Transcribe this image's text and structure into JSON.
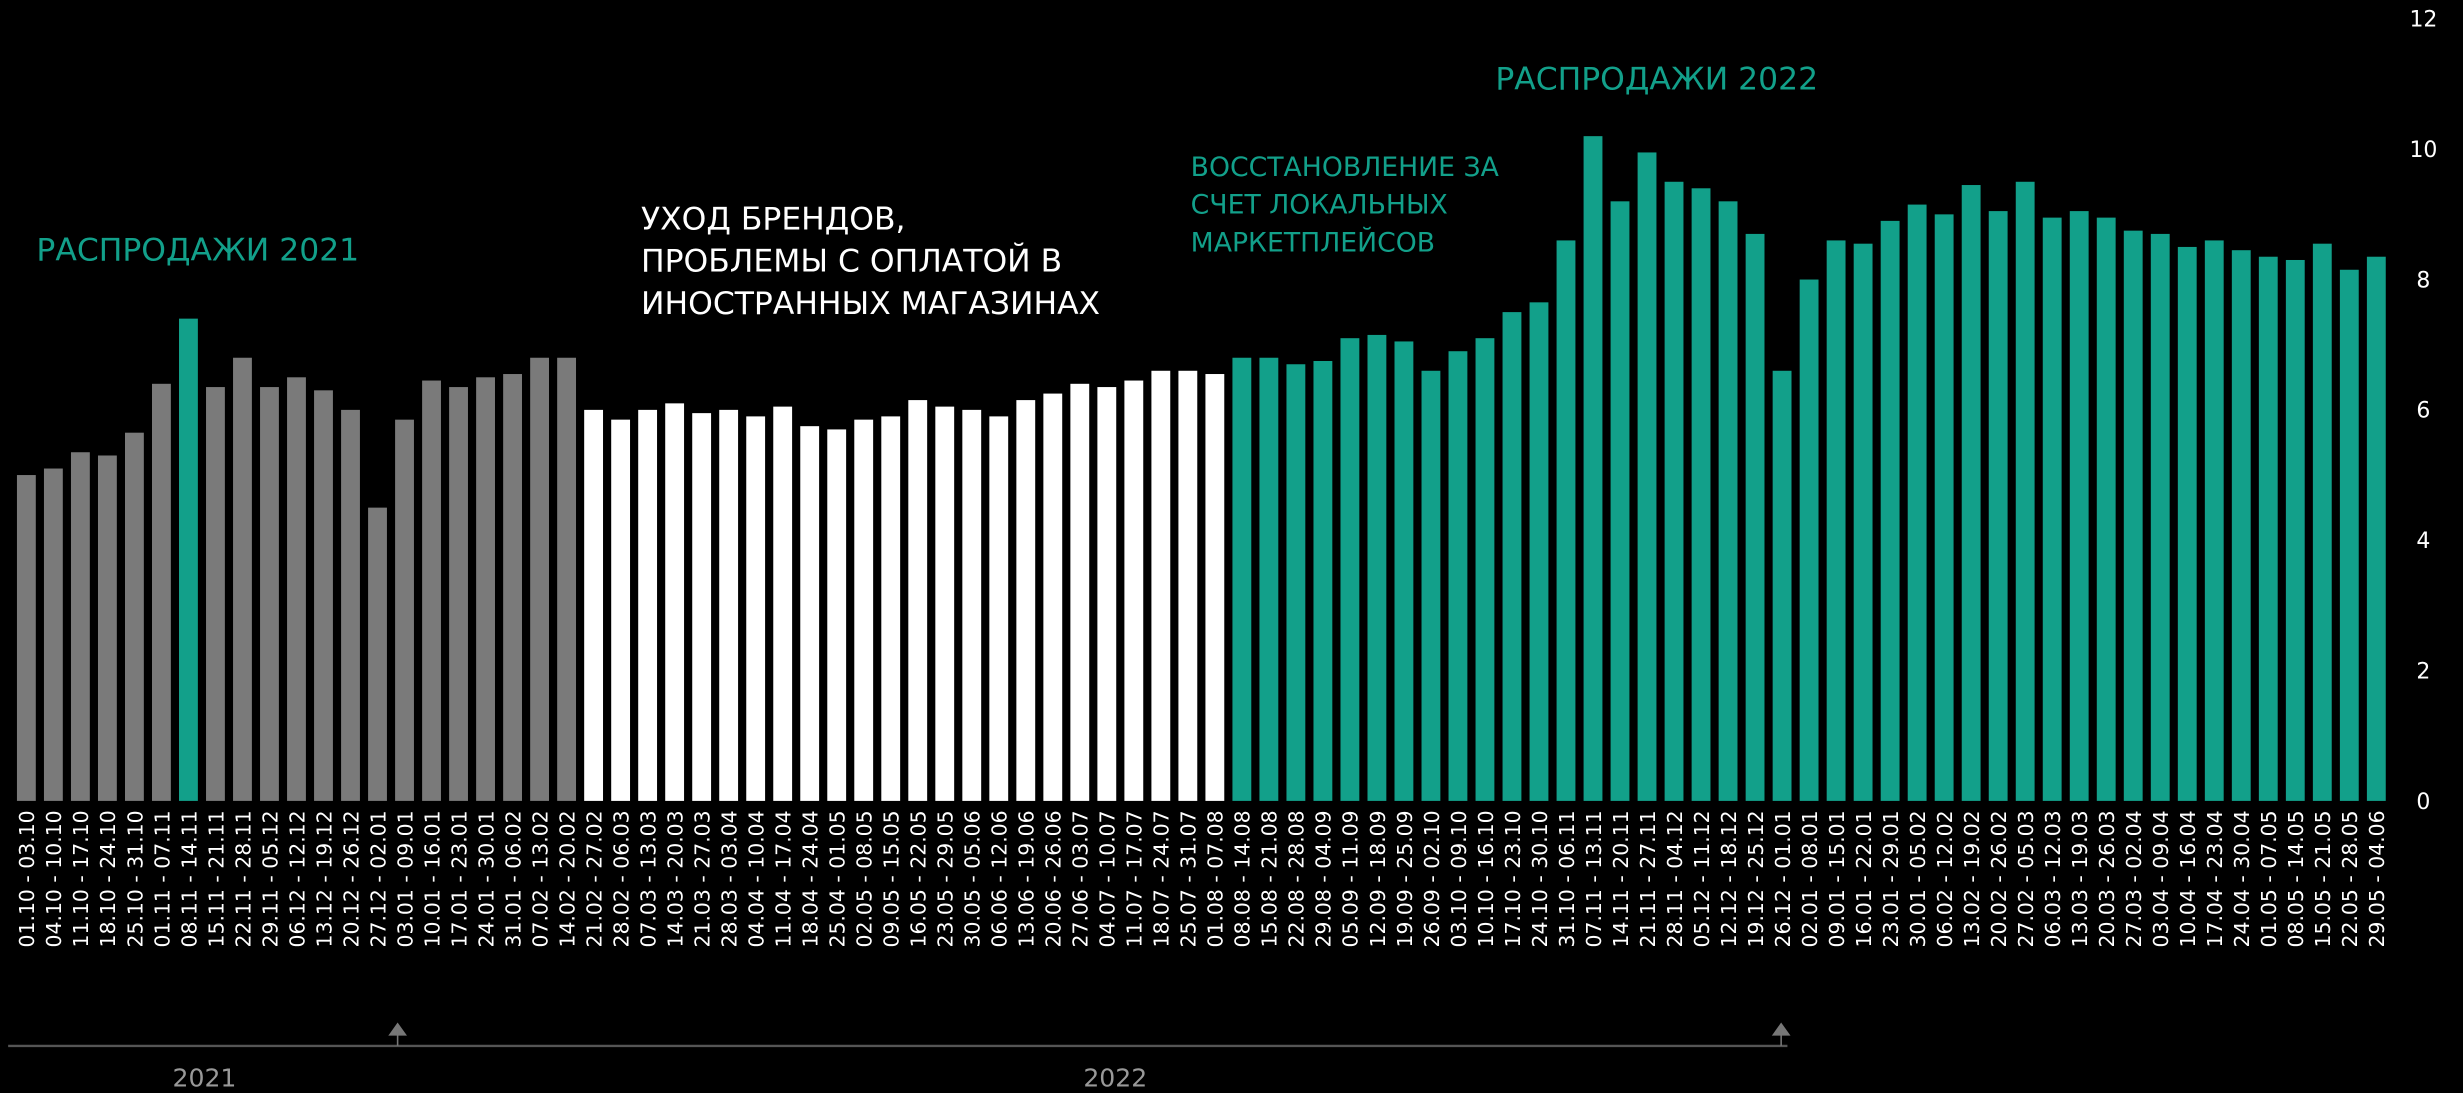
{
  "chart_data": {
    "type": "bar",
    "categories": [
      "01.10 - 03.10",
      "04.10 - 10.10",
      "11.10 - 17.10",
      "18.10 - 24.10",
      "25.10 - 31.10",
      "01.11 - 07.11",
      "08.11 - 14.11",
      "15.11 - 21.11",
      "22.11 - 28.11",
      "29.11 - 05.12",
      "06.12 - 12.12",
      "13.12 - 19.12",
      "20.12 - 26.12",
      "27.12 - 02.01",
      "03.01 - 09.01",
      "10.01 - 16.01",
      "17.01 - 23.01",
      "24.01 - 30.01",
      "31.01 - 06.02",
      "07.02 - 13.02",
      "14.02 - 20.02",
      "21.02 - 27.02",
      "28.02 - 06.03",
      "07.03 - 13.03",
      "14.03 - 20.03",
      "21.03 - 27.03",
      "28.03 - 03.04",
      "04.04 - 10.04",
      "11.04 - 17.04",
      "18.04 - 24.04",
      "25.04 - 01.05",
      "02.05 - 08.05",
      "09.05 - 15.05",
      "16.05 - 22.05",
      "23.05 - 29.05",
      "30.05 - 05.06",
      "06.06 - 12.06",
      "13.06 - 19.06",
      "20.06 - 26.06",
      "27.06 - 03.07",
      "04.07 - 10.07",
      "11.07 - 17.07",
      "18.07 - 24.07",
      "25.07 - 31.07",
      "01.08 - 07.08",
      "08.08 - 14.08",
      "15.08 - 21.08",
      "22.08 - 28.08",
      "29.08 - 04.09",
      "05.09 - 11.09",
      "12.09 - 18.09",
      "19.09 - 25.09",
      "26.09 - 02.10",
      "03.10 - 09.10",
      "10.10 - 16.10",
      "17.10 - 23.10",
      "24.10 - 30.10",
      "31.10 - 06.11",
      "07.11 - 13.11",
      "14.11 - 20.11",
      "21.11 - 27.11",
      "28.11 - 04.12",
      "05.12 - 11.12",
      "12.12 - 18.12",
      "19.12 - 25.12",
      "26.12 - 01.01",
      "02.01 - 08.01",
      "09.01 - 15.01",
      "16.01 - 22.01",
      "23.01 - 29.01",
      "30.01 - 05.02",
      "06.02 - 12.02",
      "13.02 - 19.02",
      "20.02 - 26.02",
      "27.02 - 05.03",
      "06.03 - 12.03",
      "13.03 - 19.03",
      "20.03 - 26.03",
      "27.03 - 02.04",
      "03.04 - 09.04",
      "10.04 - 16.04",
      "17.04 - 23.04",
      "24.04 - 30.04",
      "01.05 - 07.05",
      "08.05 - 14.05",
      "15.05 - 21.05",
      "22.05 - 28.05",
      "29.05 - 04.06"
    ],
    "values": [
      5.0,
      5.1,
      5.35,
      5.3,
      5.65,
      6.4,
      7.4,
      6.35,
      6.8,
      6.35,
      6.5,
      6.3,
      6.0,
      4.5,
      5.85,
      6.45,
      6.35,
      6.5,
      6.55,
      6.8,
      6.8,
      6.0,
      5.85,
      6.0,
      6.1,
      5.95,
      6.0,
      5.9,
      6.05,
      5.75,
      5.7,
      5.85,
      5.9,
      6.15,
      6.05,
      6.0,
      5.9,
      6.15,
      6.25,
      6.4,
      6.35,
      6.45,
      6.6,
      6.6,
      6.55,
      6.8,
      6.8,
      6.7,
      6.75,
      7.1,
      7.15,
      7.05,
      6.6,
      6.9,
      7.1,
      7.5,
      7.65,
      8.6,
      10.2,
      9.2,
      9.95,
      9.5,
      9.4,
      9.2,
      8.7,
      6.6,
      8.0,
      8.6,
      8.55,
      8.9,
      9.15,
      9.0,
      9.45,
      9.05,
      9.5,
      8.95,
      9.05,
      8.95,
      8.75,
      8.7,
      8.5,
      8.6,
      8.45,
      8.35,
      8.3,
      8.55,
      8.15,
      8.35
    ],
    "colors": [
      "#7a7a7a",
      "#7a7a7a",
      "#7a7a7a",
      "#7a7a7a",
      "#7a7a7a",
      "#7a7a7a",
      "#12a08a",
      "#7a7a7a",
      "#7a7a7a",
      "#7a7a7a",
      "#7a7a7a",
      "#7a7a7a",
      "#7a7a7a",
      "#7a7a7a",
      "#7a7a7a",
      "#7a7a7a",
      "#7a7a7a",
      "#7a7a7a",
      "#7a7a7a",
      "#7a7a7a",
      "#7a7a7a",
      "#ffffff",
      "#ffffff",
      "#ffffff",
      "#ffffff",
      "#ffffff",
      "#ffffff",
      "#ffffff",
      "#ffffff",
      "#ffffff",
      "#ffffff",
      "#ffffff",
      "#ffffff",
      "#ffffff",
      "#ffffff",
      "#ffffff",
      "#ffffff",
      "#ffffff",
      "#ffffff",
      "#ffffff",
      "#ffffff",
      "#ffffff",
      "#ffffff",
      "#ffffff",
      "#ffffff",
      "#12a08a",
      "#12a08a",
      "#12a08a",
      "#12a08a",
      "#12a08a",
      "#12a08a",
      "#12a08a",
      "#12a08a",
      "#12a08a",
      "#12a08a",
      "#12a08a",
      "#12a08a",
      "#12a08a",
      "#12a08a",
      "#12a08a",
      "#12a08a",
      "#12a08a",
      "#12a08a",
      "#12a08a",
      "#12a08a",
      "#12a08a",
      "#12a08a",
      "#12a08a",
      "#12a08a",
      "#12a08a",
      "#12a08a",
      "#12a08a",
      "#12a08a",
      "#12a08a",
      "#12a08a",
      "#12a08a",
      "#12a08a",
      "#12a08a",
      "#12a08a",
      "#12a08a",
      "#12a08a",
      "#12a08a",
      "#12a08a",
      "#12a08a",
      "#12a08a",
      "#12a08a",
      "#12a08a",
      "#12a08a"
    ],
    "ylim": [
      0,
      12
    ],
    "yticks": [
      0,
      2,
      4,
      6,
      8,
      10,
      12
    ],
    "annotations": [
      {
        "lines": [
          "РАСПРОДАЖИ 2021"
        ],
        "color": "#12a08a"
      },
      {
        "lines": [
          "УХОД БРЕНДОВ,",
          "ПРОБЛЕМЫ С ОПЛАТОЙ В",
          "ИНОСТРАННЫХ МАГАЗИНАХ"
        ],
        "color": "#ffffff"
      },
      {
        "lines": [
          "ВОССТАНОВЛЕНИЕ ЗА",
          "СЧЕТ ЛОКАЛЬНЫХ",
          "МАРКЕТПЛЕЙСОВ"
        ],
        "color": "#12a08a"
      },
      {
        "lines": [
          "РАСПРОДАЖИ 2022"
        ],
        "color": "#12a08a"
      }
    ],
    "years": [
      "2021",
      "2022"
    ]
  }
}
